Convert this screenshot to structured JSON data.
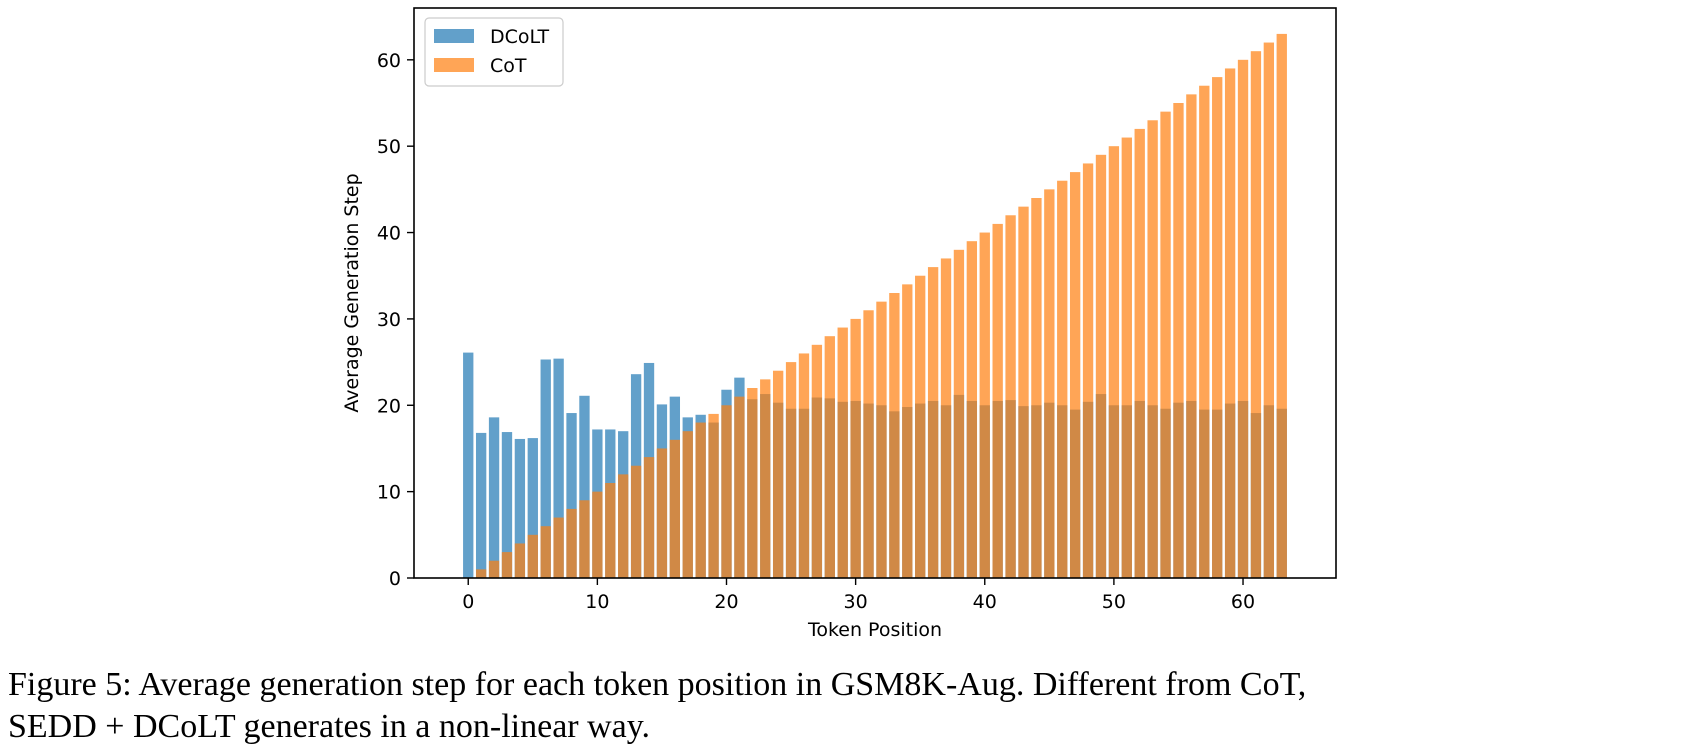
{
  "chart_data": {
    "type": "bar",
    "xlabel": "Token Position",
    "ylabel": "Average Generation Step",
    "xlim": [
      -4.2,
      67.2
    ],
    "ylim": [
      0,
      66
    ],
    "xticks": [
      0,
      10,
      20,
      30,
      40,
      50,
      60
    ],
    "yticks": [
      0,
      10,
      20,
      30,
      40,
      50,
      60
    ],
    "grid": false,
    "legend_position": "top-left",
    "x": [
      0,
      1,
      2,
      3,
      4,
      5,
      6,
      7,
      8,
      9,
      10,
      11,
      12,
      13,
      14,
      15,
      16,
      17,
      18,
      19,
      20,
      21,
      22,
      23,
      24,
      25,
      26,
      27,
      28,
      29,
      30,
      31,
      32,
      33,
      34,
      35,
      36,
      37,
      38,
      39,
      40,
      41,
      42,
      43,
      44,
      45,
      46,
      47,
      48,
      49,
      50,
      51,
      52,
      53,
      54,
      55,
      56,
      57,
      58,
      59,
      60,
      61,
      62,
      63
    ],
    "series": [
      {
        "name": "DCoLT",
        "color": "#1f77b4",
        "opacity": 0.7,
        "values": [
          26.1,
          16.8,
          18.6,
          16.9,
          16.1,
          16.2,
          25.3,
          25.4,
          19.1,
          21.1,
          17.2,
          17.2,
          17.0,
          23.6,
          24.9,
          20.1,
          21.0,
          18.6,
          18.9,
          18.0,
          21.8,
          23.2,
          20.7,
          21.3,
          20.3,
          19.6,
          19.6,
          20.9,
          20.8,
          20.4,
          20.5,
          20.2,
          20.0,
          19.3,
          19.8,
          20.2,
          20.5,
          20.0,
          21.2,
          20.5,
          20.0,
          20.5,
          20.6,
          19.9,
          20.0,
          20.3,
          20.0,
          19.5,
          20.4,
          21.3,
          20.0,
          20.0,
          20.5,
          20.0,
          19.6,
          20.3,
          20.5,
          19.5,
          19.5,
          20.2,
          20.5,
          19.1,
          20.0,
          19.6
        ]
      },
      {
        "name": "CoT",
        "color": "#ff7f0e",
        "opacity": 0.7,
        "values": [
          0,
          1,
          2,
          3,
          4,
          5,
          6,
          7,
          8,
          9,
          10,
          11,
          12,
          13,
          14,
          15,
          16,
          17,
          18,
          19,
          20,
          21,
          22,
          23,
          24,
          25,
          26,
          27,
          28,
          29,
          30,
          31,
          32,
          33,
          34,
          35,
          36,
          37,
          38,
          39,
          40,
          41,
          42,
          43,
          44,
          45,
          46,
          47,
          48,
          49,
          50,
          51,
          52,
          53,
          54,
          55,
          56,
          57,
          58,
          59,
          60,
          61,
          62,
          63
        ]
      }
    ]
  },
  "caption": {
    "line1": "Figure 5:  Average generation step for each token position in GSM8K-Aug.  Different from CoT,",
    "line2": "SEDD + DCoLT generates in a non-linear way."
  }
}
